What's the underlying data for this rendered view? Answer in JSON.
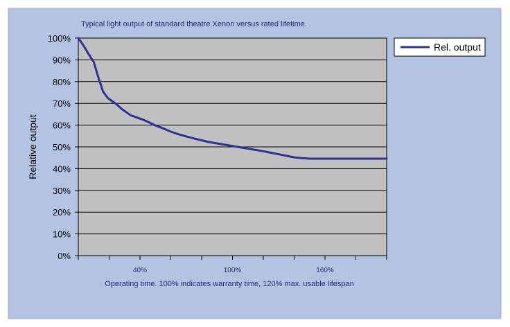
{
  "chart_data": {
    "type": "line",
    "title": "Typical light output of standard theatre Xenon versus rated lifetime.",
    "xlabel": "Operating time. 100% indicates warranty time, 120% max. usable lifespan",
    "ylabel": "Relative output",
    "xlim": [
      0,
      200
    ],
    "ylim": [
      0,
      100
    ],
    "y_ticks": [
      "0%",
      "10%",
      "20%",
      "30%",
      "40%",
      "50%",
      "60%",
      "70%",
      "80%",
      "90%",
      "100%"
    ],
    "x_tick_positions": [
      0,
      20,
      40,
      60,
      80,
      100,
      120,
      140,
      160,
      180,
      200
    ],
    "x_tick_labels": [
      {
        "value": 40,
        "label": "40%"
      },
      {
        "value": 100,
        "label": "100%"
      },
      {
        "value": 160,
        "label": "160%"
      }
    ],
    "grid": true,
    "legend": {
      "position": "top-right",
      "entries": [
        "Rel. output"
      ]
    },
    "series": [
      {
        "name": "Rel. output",
        "color": "#2e3192",
        "x": [
          0,
          3,
          6,
          10,
          13,
          16,
          19,
          22,
          25,
          28,
          31,
          34,
          38,
          42,
          46,
          50,
          55,
          60,
          65,
          70,
          75,
          80,
          85,
          90,
          95,
          100,
          105,
          110,
          115,
          120,
          125,
          130,
          135,
          140,
          145,
          150,
          155,
          160,
          164,
          168,
          172,
          176,
          180,
          185,
          190,
          195,
          200
        ],
        "y": [
          100,
          97,
          93.5,
          89,
          82,
          75.5,
          72.5,
          71,
          69.5,
          67.5,
          66,
          64.5,
          63.5,
          62.5,
          61.2,
          59.8,
          58.5,
          57,
          55.8,
          54.8,
          53.9,
          53,
          52.2,
          51.6,
          51,
          50.4,
          49.8,
          49.2,
          48.6,
          48,
          47.3,
          46.6,
          45.9,
          45.2,
          44.8,
          44.6,
          44.6,
          44.6,
          44.6,
          44.6,
          44.6,
          44.6,
          44.6,
          44.6,
          44.6,
          44.6,
          44.6
        ]
      }
    ]
  },
  "colors": {
    "outer_background": "#b3c3e1",
    "plot_background": "#c0c0c0",
    "title_text": "#1f2a7a",
    "axis_text": "#000000",
    "line": "#2e3192"
  }
}
